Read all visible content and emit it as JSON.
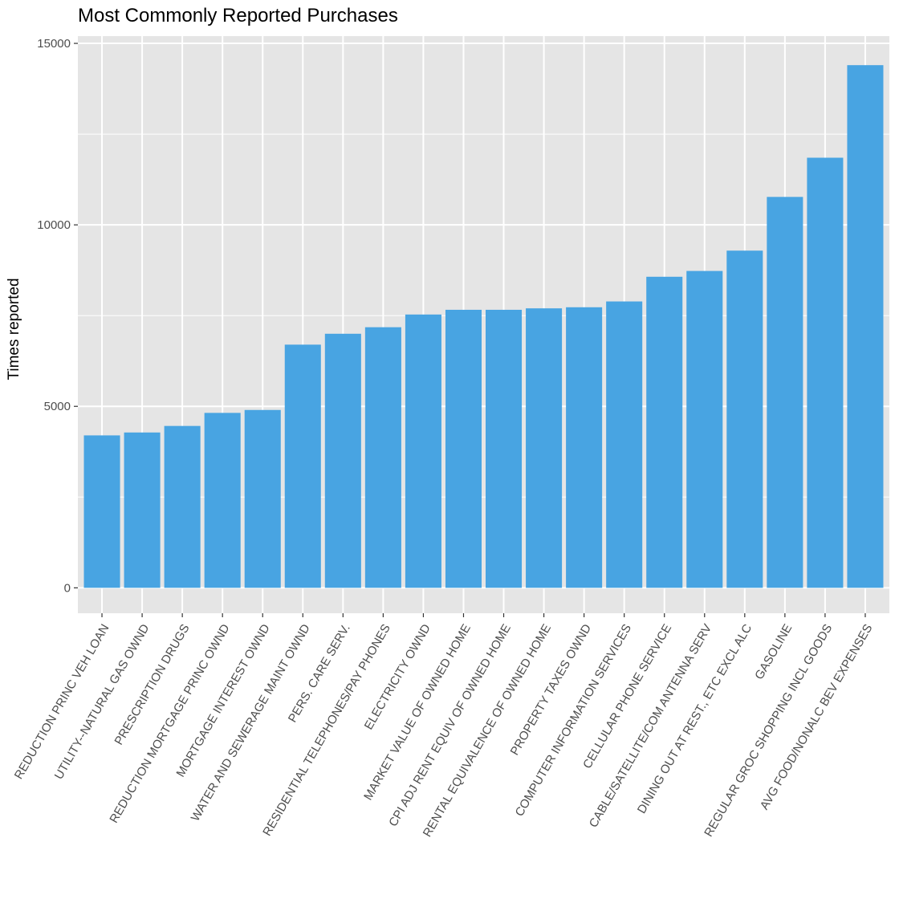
{
  "chart_data": {
    "type": "bar",
    "title": "Most Commonly Reported Purchases",
    "xlabel": "",
    "ylabel": "Times reported",
    "ylim": [
      -700,
      15200
    ],
    "yticks": [
      0,
      5000,
      10000,
      15000
    ],
    "y_tick_labels": [
      "0",
      "5000",
      "10000",
      "15000"
    ],
    "grid": true,
    "legend": "none",
    "bar_color": "#48A4E2",
    "panel_color": "#E5E5E5",
    "categories": [
      "REDUCTION PRINC VEH LOAN",
      "UTILITY--NATURAL GAS OWND",
      "PRESCRIPTION DRUGS",
      "REDUCTION MORTGAGE PRINC OWND",
      "MORTGAGE INTEREST OWND",
      "WATER AND SEWERAGE MAINT OWND",
      "PERS. CARE SERV.",
      "RESIDENTIAL TELEPHONES/PAY PHONES",
      "ELECTRICITY OWND",
      "MARKET VALUE OF OWNED HOME",
      "CPI ADJ RENT EQUIV OF OWNED HOME",
      "RENTAL EQUIVALENCE OF OWNED HOME",
      "PROPERTY TAXES OWND",
      "COMPUTER INFORMATION SERVICES",
      "CELLULAR PHONE SERVICE",
      "CABLE/SATELLITE/COM ANTENNA SERV",
      "DINING OUT AT REST., ETC EXCL ALC",
      "GASOLINE",
      "REGULAR GROC SHOPPING INCL GOODS",
      "AVG FOOD/NONALC BEV EXPENSES"
    ],
    "values": [
      4200,
      4280,
      4460,
      4820,
      4900,
      6700,
      7000,
      7180,
      7530,
      7660,
      7660,
      7700,
      7730,
      7890,
      8570,
      8730,
      9290,
      10770,
      11850,
      14400
    ]
  }
}
